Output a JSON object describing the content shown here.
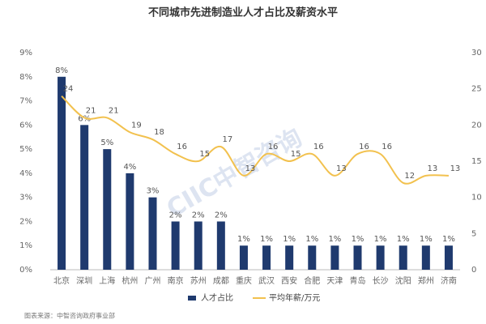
{
  "chart_data": {
    "type": "bar",
    "title": "不同城市先进制造业人才占比及薪资水平",
    "categories": [
      "北京",
      "深圳",
      "上海",
      "杭州",
      "广州",
      "南京",
      "苏州",
      "成都",
      "重庆",
      "武汉",
      "西安",
      "合肥",
      "天津",
      "青岛",
      "长沙",
      "沈阳",
      "郑州",
      "济南"
    ],
    "series": [
      {
        "name": "人才占比",
        "type": "bar",
        "color": "#1f3a6e",
        "values": [
          8,
          6,
          5,
          4,
          3,
          2,
          2,
          2,
          1,
          1,
          1,
          1,
          1,
          1,
          1,
          1,
          1,
          1
        ],
        "value_labels": [
          "8%",
          "6%",
          "5%",
          "4%",
          "3%",
          "2%",
          "2%",
          "2%",
          "1%",
          "1%",
          "1%",
          "1%",
          "1%",
          "1%",
          "1%",
          "1%",
          "1%",
          "1%"
        ]
      },
      {
        "name": "平均年薪/万元",
        "type": "line",
        "axis": "y2",
        "color": "#f2c14e",
        "values": [
          24,
          21,
          21,
          19,
          18,
          16,
          15,
          17,
          13,
          16,
          15,
          16,
          13,
          16,
          16,
          12,
          13,
          13
        ]
      }
    ],
    "ylim": [
      0,
      9
    ],
    "yticks": [
      {
        "value": 0,
        "label": "0%"
      },
      {
        "value": 1,
        "label": "1%"
      },
      {
        "value": 2,
        "label": "2%"
      },
      {
        "value": 3,
        "label": "3%"
      },
      {
        "value": 4,
        "label": "4%"
      },
      {
        "value": 5,
        "label": "5%"
      },
      {
        "value": 6,
        "label": "6%"
      },
      {
        "value": 7,
        "label": "7%"
      },
      {
        "value": 8,
        "label": "8%"
      },
      {
        "value": 9,
        "label": "9%"
      }
    ],
    "y2lim": [
      0,
      30
    ],
    "y2ticks": [
      0,
      5,
      10,
      15,
      20,
      25,
      30
    ],
    "source": "图表来源：中智咨询政府事业部",
    "watermark": "CIIC中智咨询"
  }
}
